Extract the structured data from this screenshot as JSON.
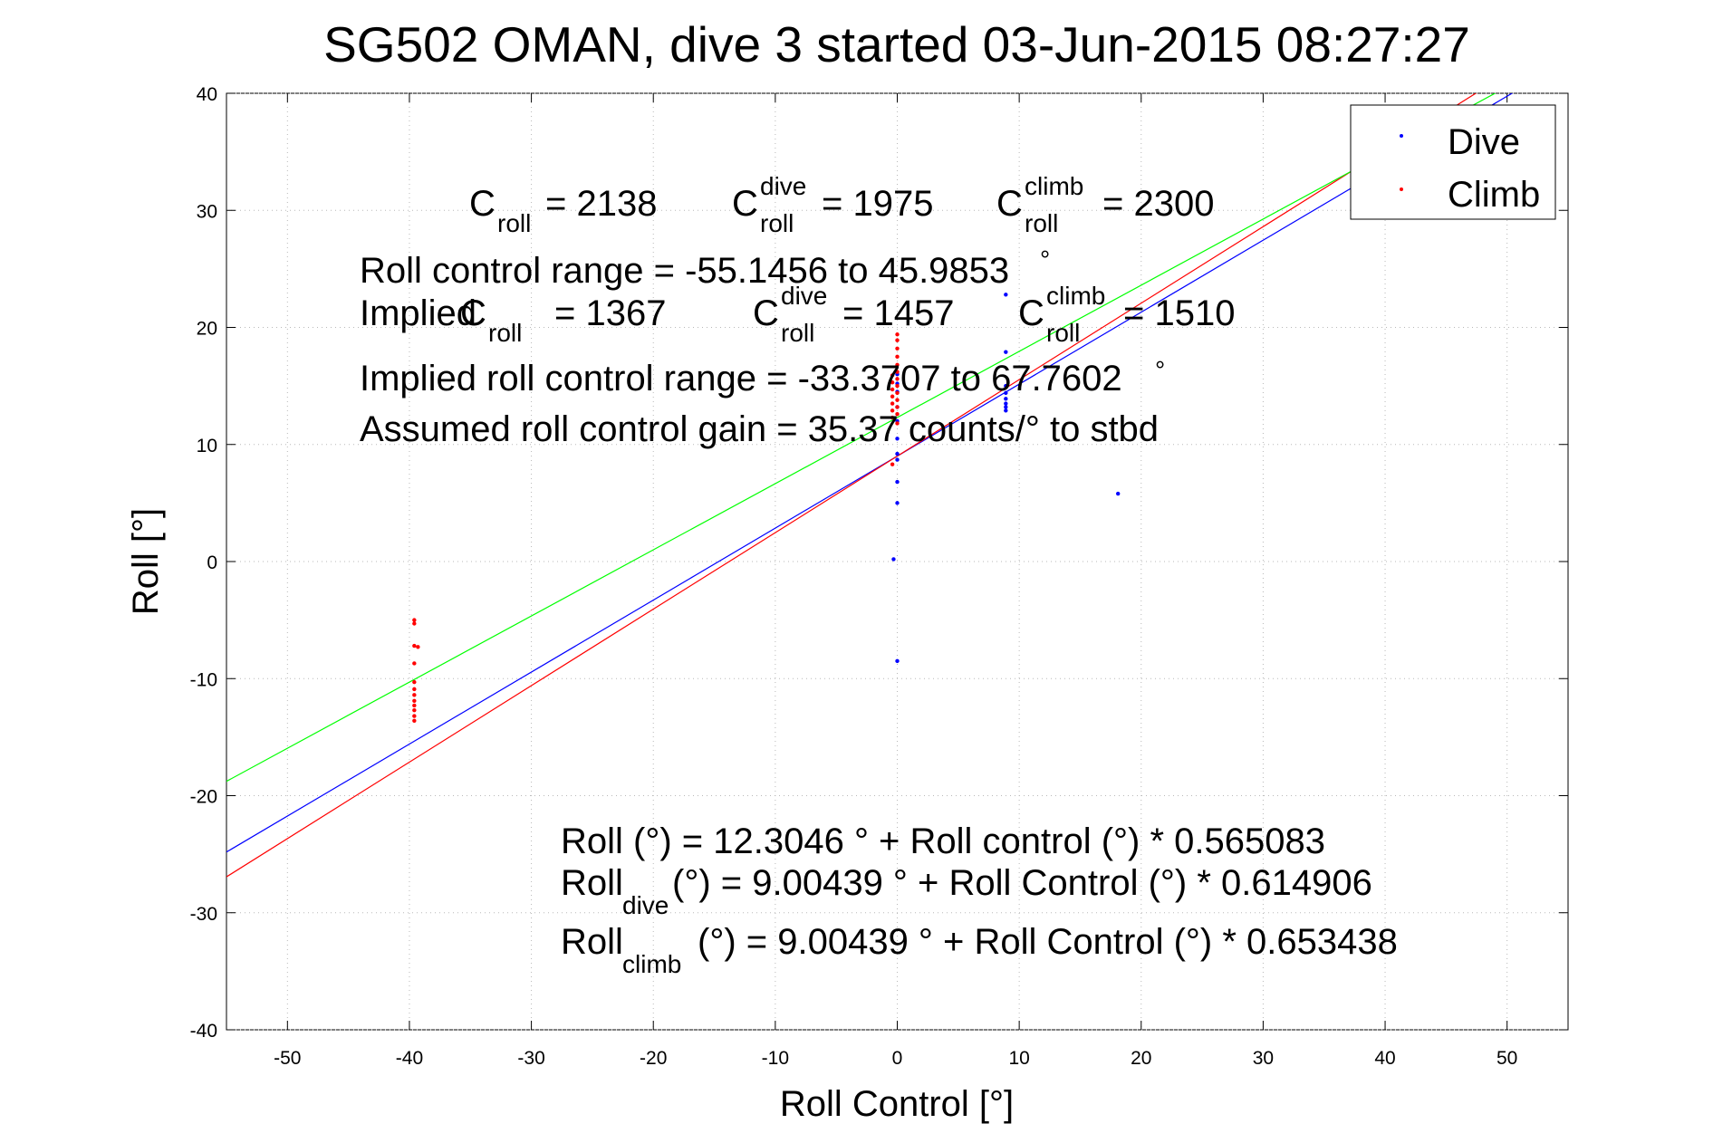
{
  "chart_data": {
    "type": "scatter",
    "title": "SG502 OMAN, dive 3 started 03-Jun-2015 08:27:27",
    "xlabel": "Roll Control [°]",
    "ylabel": "Roll [°]",
    "xlim": [
      -55,
      55
    ],
    "ylim": [
      -40,
      40
    ],
    "xticks": [
      -50,
      -40,
      -30,
      -20,
      -10,
      0,
      10,
      20,
      30,
      40,
      50
    ],
    "yticks": [
      -40,
      -30,
      -20,
      -10,
      0,
      10,
      20,
      30,
      40
    ],
    "grid": true,
    "legend_position": "top-right",
    "legend": [
      {
        "name": "Dive",
        "color": "#0000ff"
      },
      {
        "name": "Climb",
        "color": "#ff0000"
      }
    ],
    "series": [
      {
        "name": "Dive",
        "color": "#0000ff",
        "points": [
          [
            0,
            16
          ],
          [
            0,
            15.2
          ],
          [
            0,
            14.5
          ],
          [
            0,
            13.2
          ],
          [
            0,
            12
          ],
          [
            0,
            10.5
          ],
          [
            0,
            9.2
          ],
          [
            0,
            8.7
          ],
          [
            0,
            6.8
          ],
          [
            0,
            5
          ],
          [
            -0.3,
            0.2
          ],
          [
            0,
            -8.5
          ],
          [
            8.9,
            22.8
          ],
          [
            8.9,
            17.9
          ],
          [
            8.9,
            15
          ],
          [
            8.9,
            14.4
          ],
          [
            8.9,
            13.9
          ],
          [
            8.9,
            13.5
          ],
          [
            8.9,
            13.2
          ],
          [
            8.9,
            12.9
          ],
          [
            18.1,
            5.8
          ]
        ]
      },
      {
        "name": "Climb",
        "color": "#ff0000",
        "points": [
          [
            -39.6,
            -5
          ],
          [
            -39.6,
            -5.3
          ],
          [
            -39.6,
            -7.2
          ],
          [
            -39.3,
            -7.3
          ],
          [
            -39.6,
            -8.7
          ],
          [
            -39.6,
            -10.3
          ],
          [
            -39.6,
            -10.9
          ],
          [
            -39.6,
            -11.4
          ],
          [
            -39.6,
            -11.9
          ],
          [
            -39.6,
            -12.3
          ],
          [
            -39.6,
            -12.7
          ],
          [
            -39.6,
            -13.2
          ],
          [
            -39.6,
            -13.6
          ],
          [
            0,
            19.4
          ],
          [
            0,
            18.9
          ],
          [
            0,
            18.2
          ],
          [
            0,
            17.5
          ],
          [
            0,
            16.8
          ],
          [
            0,
            16.2
          ],
          [
            -0.4,
            15.9
          ],
          [
            0,
            15.6
          ],
          [
            -0.4,
            15.3
          ],
          [
            0,
            15
          ],
          [
            -0.4,
            14.7
          ],
          [
            0,
            14.4
          ],
          [
            -0.4,
            14.1
          ],
          [
            0,
            13.8
          ],
          [
            -0.4,
            13.5
          ],
          [
            0,
            13.2
          ],
          [
            -0.4,
            12.9
          ],
          [
            0,
            12.6
          ],
          [
            -0.4,
            12.3
          ],
          [
            0,
            11.8
          ],
          [
            -0.4,
            8.3
          ]
        ]
      }
    ],
    "fit_lines": [
      {
        "color": "#0000ff",
        "intercept": 9.00439,
        "slope": 0.614906
      },
      {
        "color": "#ff0000",
        "intercept": 9.00439,
        "slope": 0.653438
      },
      {
        "color": "#00ff00",
        "intercept": 12.3046,
        "slope": 0.565083
      }
    ],
    "annotations": {
      "c_roll_label": "= 2138",
      "c_roll_dive_label": "= 1975",
      "c_roll_climb_label": "= 2300",
      "roll_control_range": "Roll control range = -55.1456 to 45.9853",
      "implied_label": "Implied",
      "implied_c_roll": "= 1367",
      "implied_c_roll_dive": "= 1457",
      "implied_c_roll_climb": "= 1510",
      "implied_range": "Implied roll control range = -33.3707 to 67.7602",
      "gain": "Assumed roll control gain = 35.37 counts/° to stbd",
      "eq_all": "Roll (°) = 12.3046 ° + Roll control (°) * 0.565083",
      "eq_dive": "(°) = 9.00439 ° + Roll Control (°) * 0.614906",
      "eq_climb": "(°) = 9.00439 ° + Roll Control (°) * 0.653438",
      "sym_C": "C",
      "sym_roll": "roll",
      "sym_dive": "dive",
      "sym_climb": "climb",
      "sym_Roll": "Roll",
      "degree": "°"
    }
  }
}
